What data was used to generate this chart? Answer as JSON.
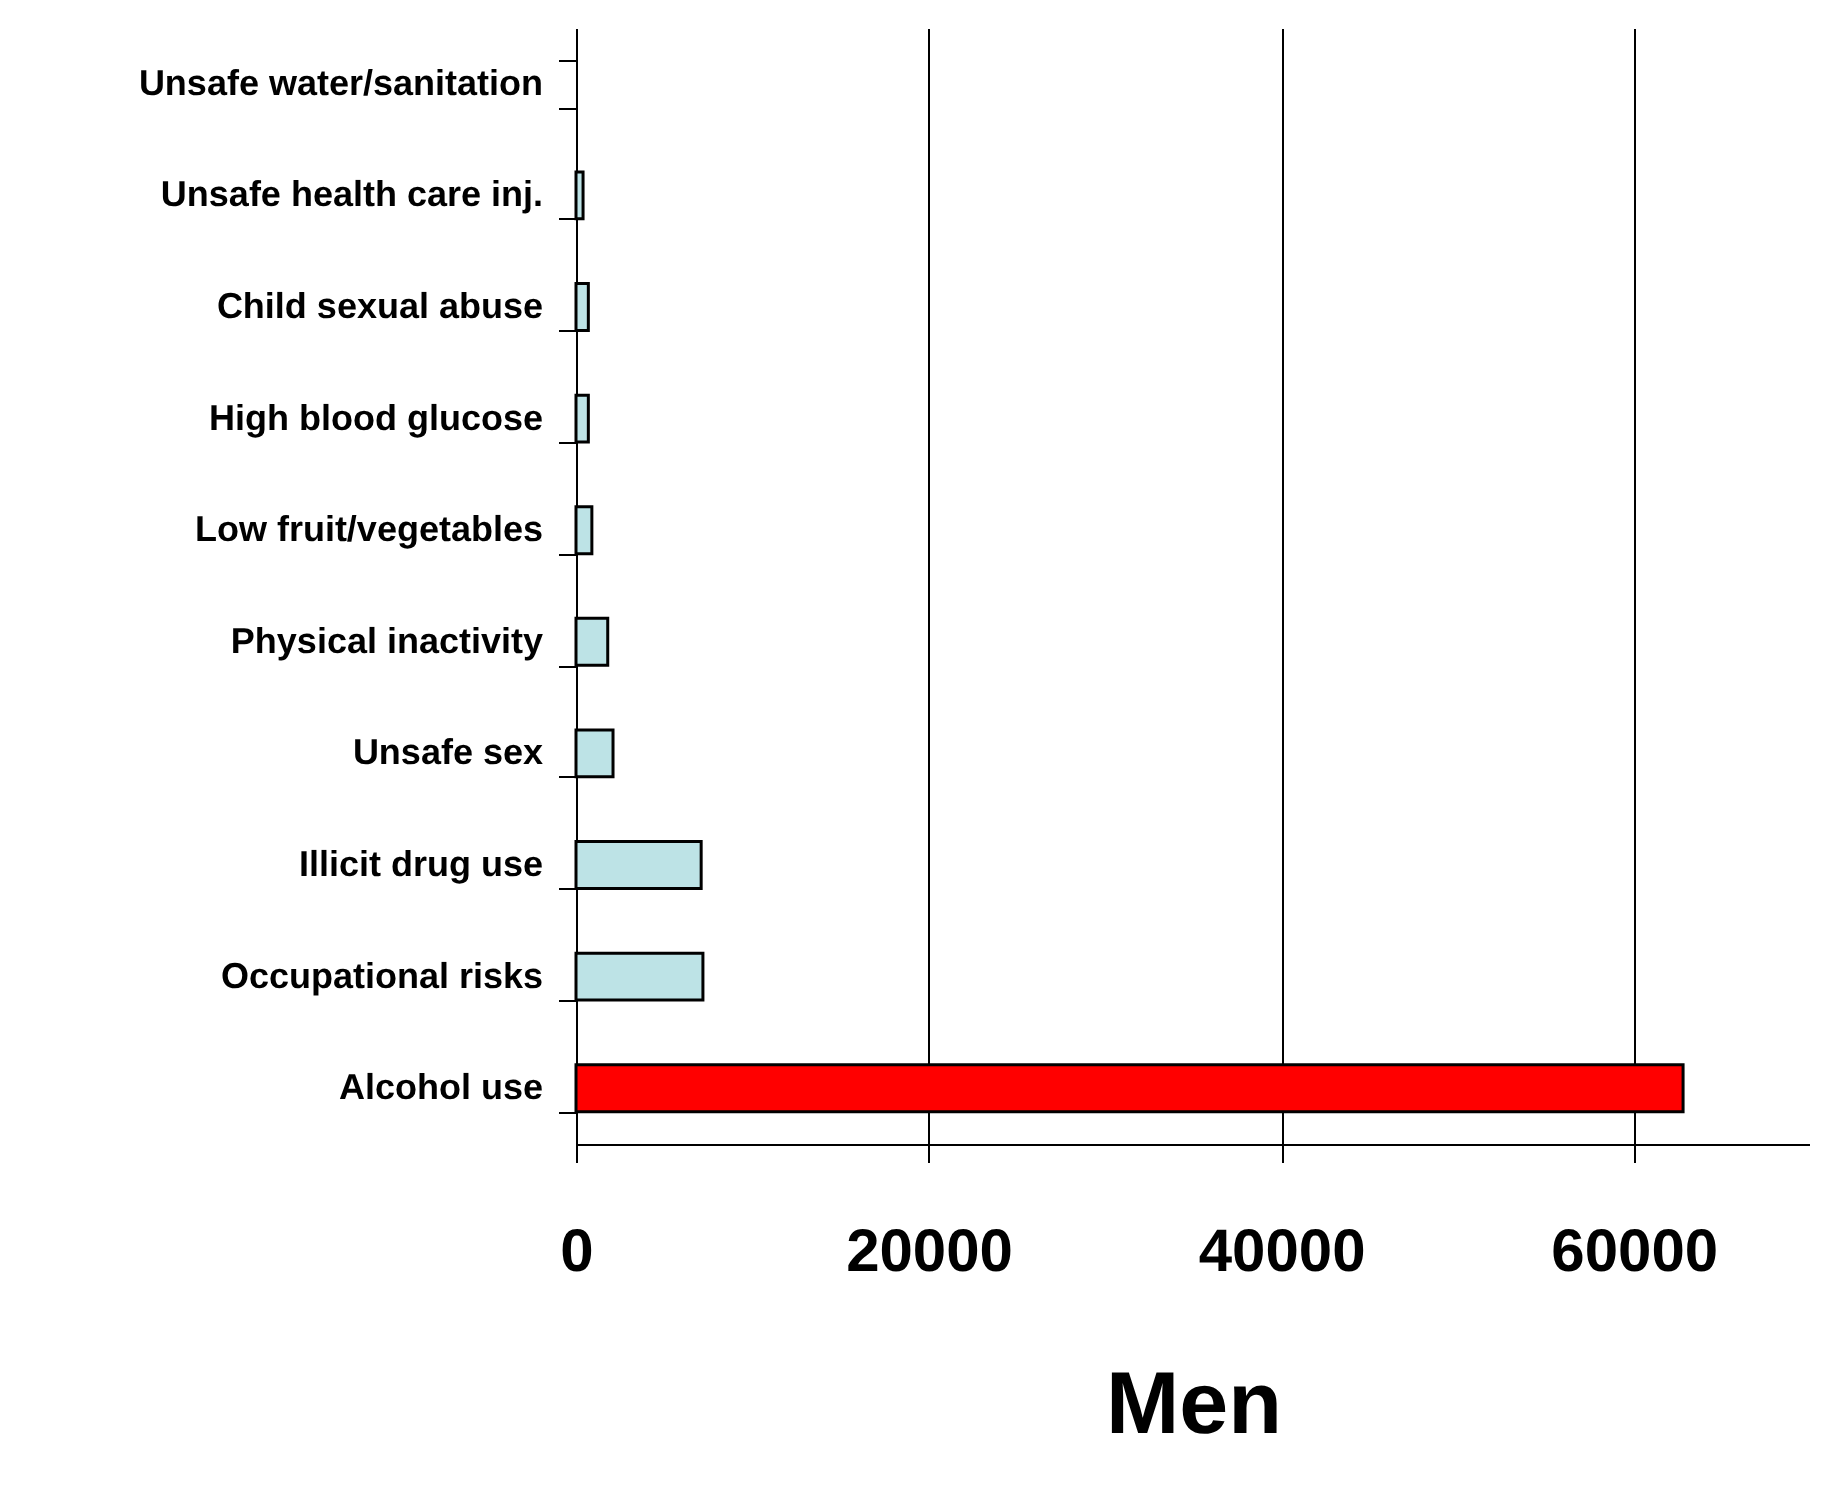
{
  "chart_data": {
    "type": "bar",
    "orientation": "horizontal",
    "xlabel": "Men",
    "categories": [
      "Unsafe water/sanitation",
      "Unsafe health care inj.",
      "Child sexual abuse",
      "High blood glucose",
      "Low fruit/vegetables",
      "Physical inactivity",
      "Unsafe sex",
      "Illicit drug use",
      "Occupational risks",
      "Alcohol use"
    ],
    "values": [
      null,
      400,
      700,
      700,
      900,
      1800,
      2100,
      7100,
      7200,
      62800
    ],
    "colors": [
      "#bde3e6",
      "#bde3e6",
      "#bde3e6",
      "#bde3e6",
      "#bde3e6",
      "#bde3e6",
      "#bde3e6",
      "#bde3e6",
      "#bde3e6",
      "#ff0000"
    ],
    "xlim": [
      0,
      70000
    ],
    "xticks": [
      0,
      20000,
      40000,
      60000
    ],
    "grid": "x"
  }
}
